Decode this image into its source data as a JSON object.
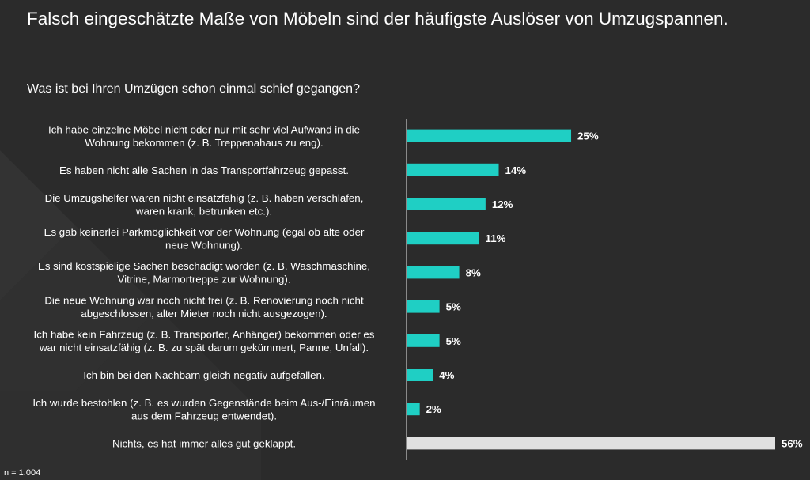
{
  "header": {
    "title": "Falsch eingeschätzte Maße von Möbeln sind der häufigste Auslöser von Umzugspannen.",
    "subtitle": "Was ist bei Ihren Umzügen schon einmal schief gegangen?"
  },
  "footer": {
    "note": "n = 1.004"
  },
  "colors": {
    "bar": "#1fcfc4",
    "bar_highlight": "#e0e0e0",
    "background": "#2b2b2b"
  },
  "chart_data": {
    "type": "bar",
    "orientation": "horizontal",
    "categories": [
      [
        "Ich habe einzelne Möbel nicht oder nur mit sehr viel Aufwand in die",
        "Wohnung bekommen (z. B. Treppenahaus zu eng)."
      ],
      [
        "Es haben nicht alle Sachen in das Transportfahrzeug gepasst."
      ],
      [
        "Die Umzugshelfer waren nicht einsatzfähig (z. B. haben verschlafen,",
        "waren krank, betrunken etc.)."
      ],
      [
        "Es gab keinerlei Parkmöglichkeit vor der Wohnung (egal ob alte oder",
        "neue Wohnung)."
      ],
      [
        "Es sind kostspielige Sachen beschädigt worden (z. B. Waschmaschine,",
        "Vitrine, Marmortreppe zur Wohnung)."
      ],
      [
        "Die neue Wohnung war noch nicht frei (z. B. Renovierung noch nicht",
        "abgeschlossen, alter Mieter noch nicht ausgezogen)."
      ],
      [
        "Ich habe kein Fahrzeug (z. B. Transporter, Anhänger) bekommen oder es",
        "war nicht einsatzfähig (z. B. zu spät darum gekümmert, Panne, Unfall)."
      ],
      [
        "Ich bin bei den Nachbarn gleich negativ aufgefallen."
      ],
      [
        "Ich wurde bestohlen (z. B. es wurden Gegenstände beim Aus-/Einräumen",
        "aus dem Fahrzeug entwendet)."
      ],
      [
        "Nichts, es hat immer alles gut geklappt."
      ]
    ],
    "values": [
      25,
      14,
      12,
      11,
      8,
      5,
      5,
      4,
      2,
      56
    ],
    "value_labels": [
      "25%",
      "14%",
      "12%",
      "11%",
      "8%",
      "5%",
      "5%",
      "4%",
      "2%",
      "56%"
    ],
    "highlight_index": 9,
    "xlim": [
      0,
      56
    ],
    "grid": false,
    "legend": "none"
  }
}
